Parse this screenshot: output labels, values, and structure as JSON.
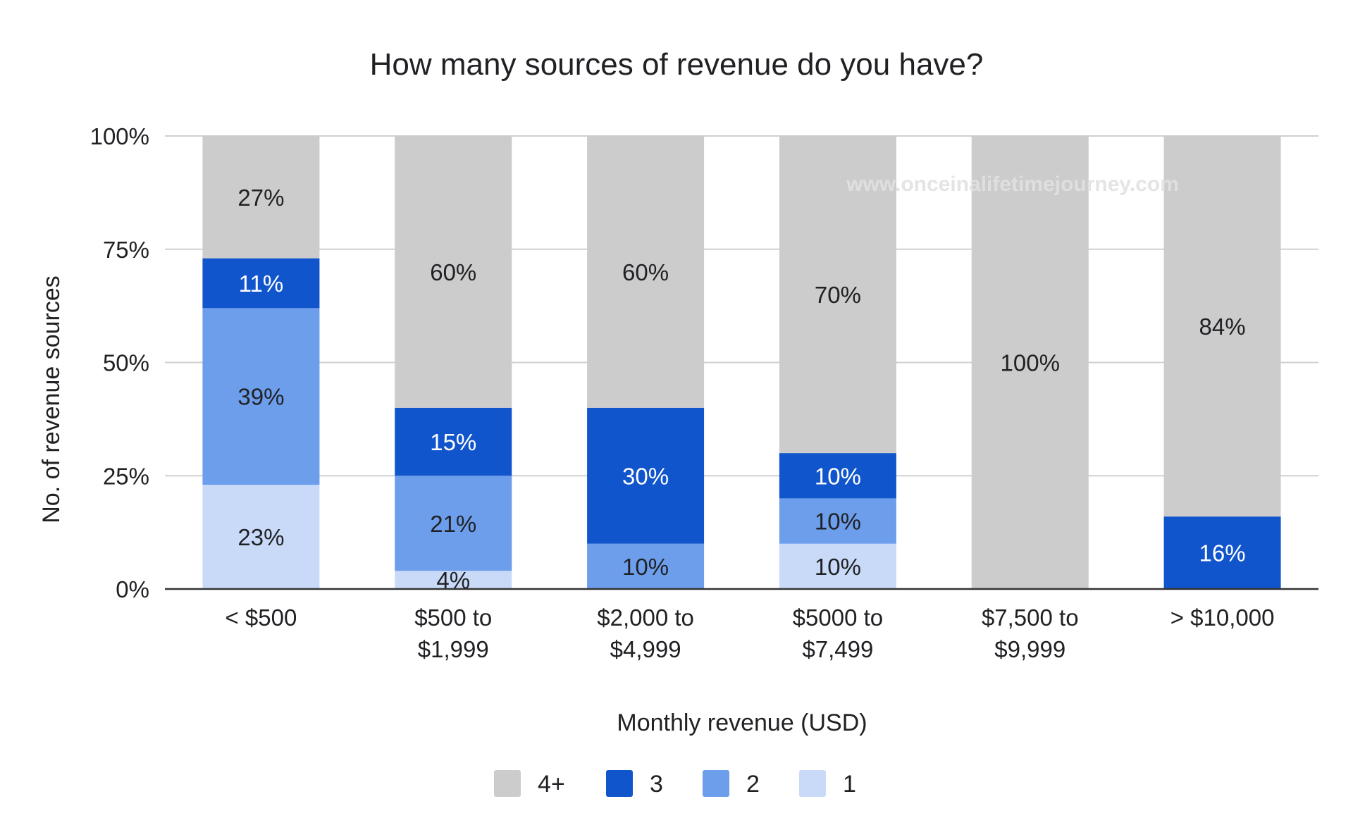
{
  "chart_data": {
    "type": "bar",
    "stacked": true,
    "normalized": true,
    "title": "How many sources of revenue do you have?",
    "xlabel": "Monthly revenue (USD)",
    "ylabel": "No. of revenue sources",
    "ylim": [
      0,
      100
    ],
    "yticks": [
      "0%",
      "25%",
      "50%",
      "75%",
      "100%"
    ],
    "grid": true,
    "legend_position": "bottom",
    "categories": [
      [
        "< $500"
      ],
      [
        "$500 to",
        "$1,999"
      ],
      [
        "$2,000 to",
        "$4,999"
      ],
      [
        "$5000 to",
        "$7,499"
      ],
      [
        "$7,500 to",
        "$9,999"
      ],
      [
        "> $10,000"
      ]
    ],
    "series": [
      {
        "name": "1",
        "color": "#c9daf8",
        "label_color": "#202124",
        "values": [
          23,
          4,
          0,
          10,
          0,
          0
        ]
      },
      {
        "name": "2",
        "color": "#6d9eeb",
        "label_color": "#202124",
        "values": [
          39,
          21,
          10,
          10,
          0,
          0
        ]
      },
      {
        "name": "3",
        "color": "#1155cc",
        "label_color": "#ffffff",
        "values": [
          11,
          15,
          30,
          10,
          0,
          16
        ]
      },
      {
        "name": "4+",
        "color": "#cccccc",
        "label_color": "#202124",
        "values": [
          27,
          60,
          60,
          70,
          100,
          84
        ]
      }
    ],
    "legend_order": [
      "4+",
      "3",
      "2",
      "1"
    ],
    "watermark": "www.onceinalifetimejourney.com"
  }
}
